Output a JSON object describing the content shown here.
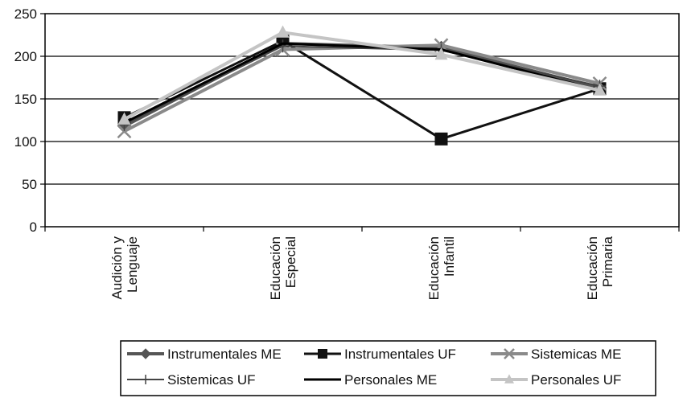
{
  "chart_data": {
    "type": "line",
    "title": "",
    "xlabel": "",
    "ylabel": "",
    "ylim": [
      0,
      250
    ],
    "yticks": [
      "0",
      "50",
      "100",
      "150",
      "200",
      "250"
    ],
    "categories": [
      [
        "Audición y",
        "Lenguaje"
      ],
      [
        "Educación",
        "Especial"
      ],
      [
        "Educación",
        "Infantil"
      ],
      [
        "Educación",
        "Primaria"
      ]
    ],
    "grid": true,
    "legend_position": "bottom",
    "series": [
      {
        "name": "Instrumentales ME",
        "values": [
          118,
          215,
          210,
          163
        ],
        "color": "#555555",
        "marker": "diamond",
        "width": 4
      },
      {
        "name": "Instrumentales UF",
        "values": [
          128,
          218,
          103,
          162
        ],
        "color": "#111111",
        "marker": "square",
        "width": 3
      },
      {
        "name": "Sistemicas ME",
        "values": [
          112,
          208,
          213,
          168
        ],
        "color": "#8a8a8a",
        "marker": "x",
        "width": 4
      },
      {
        "name": "Sistemicas UF",
        "values": [
          120,
          212,
          207,
          165
        ],
        "color": "#444444",
        "marker": "plus",
        "width": 2
      },
      {
        "name": "Personales ME",
        "values": [
          122,
          215,
          208,
          160
        ],
        "color": "#000000",
        "marker": "none",
        "width": 3
      },
      {
        "name": "Personales UF",
        "values": [
          126,
          228,
          202,
          160
        ],
        "color": "#c4c4c4",
        "marker": "triangle",
        "width": 4
      }
    ]
  }
}
